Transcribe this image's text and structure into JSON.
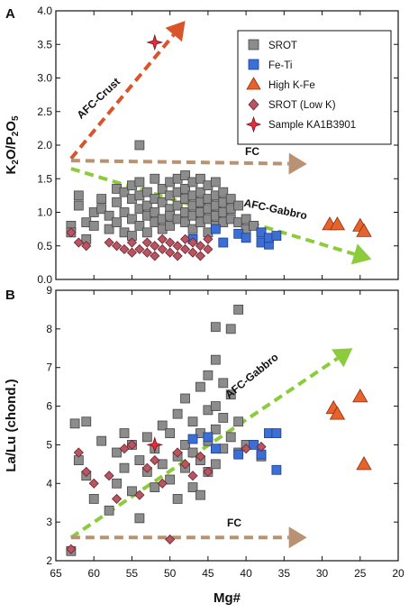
{
  "colors": {
    "srot": "#8c8c8c",
    "fe_ti": "#3b6fd6",
    "high_k_fe": "#e8622c",
    "srot_low_k": "#b95560",
    "sample": "#e0303c",
    "afc_crust": "#d9542a",
    "fc": "#b89272",
    "afc_gabbro": "#8ccc3c"
  },
  "chart_data": [
    {
      "type": "scatter",
      "panel": "A",
      "xlabel": "",
      "ylabel": "K2O/P2O5",
      "xlim": [
        65,
        20
      ],
      "ylim": [
        0,
        4
      ],
      "xticks": [
        65,
        60,
        55,
        50,
        45,
        40,
        35,
        30,
        25,
        20
      ],
      "yticks": [
        "0.0",
        "0.5",
        "1.0",
        "1.5",
        "2.0",
        "2.5",
        "3.0",
        "3.5",
        "4.0"
      ],
      "legend": {
        "placement": "top-right",
        "entries": [
          "SROT",
          "Fe-Ti",
          "High K-Fe",
          "SROT (Low K)",
          "Sample KA1B3901"
        ]
      },
      "trends": [
        {
          "label": "AFC-Crust",
          "from": [
            63,
            1.8
          ],
          "to": [
            48,
            3.85
          ],
          "color_key": "afc_crust"
        },
        {
          "label": "FC",
          "from": [
            63,
            1.77
          ],
          "to": [
            32,
            1.72
          ],
          "color_key": "fc"
        },
        {
          "label": "AFC-Gabbro",
          "from": [
            63,
            1.65
          ],
          "to": [
            23.5,
            0.3
          ],
          "color_key": "afc_gabbro"
        }
      ],
      "series": [
        {
          "name": "SROT",
          "marker": "square",
          "color_key": "srot",
          "points": [
            [
              63,
              0.8
            ],
            [
              63,
              0.7
            ],
            [
              62,
              1.25
            ],
            [
              62,
              1.1
            ],
            [
              61,
              0.85
            ],
            [
              61,
              0.6
            ],
            [
              60,
              1.0
            ],
            [
              60,
              0.8
            ],
            [
              59,
              1.2
            ],
            [
              59,
              1.05
            ],
            [
              58,
              0.95
            ],
            [
              58,
              0.75
            ],
            [
              57,
              1.35
            ],
            [
              57,
              1.15
            ],
            [
              57,
              0.85
            ],
            [
              56,
              1.3
            ],
            [
              56,
              1.0
            ],
            [
              56,
              0.7
            ],
            [
              55,
              1.4
            ],
            [
              55,
              1.2
            ],
            [
              55,
              0.9
            ],
            [
              55,
              0.65
            ],
            [
              54,
              2.0
            ],
            [
              54,
              1.45
            ],
            [
              54,
              1.25
            ],
            [
              54,
              1.05
            ],
            [
              54,
              0.8
            ],
            [
              53,
              1.3
            ],
            [
              53,
              1.1
            ],
            [
              53,
              0.95
            ],
            [
              53,
              0.7
            ],
            [
              52,
              1.5
            ],
            [
              52,
              1.2
            ],
            [
              52,
              1.0
            ],
            [
              52,
              0.85
            ],
            [
              51,
              1.35
            ],
            [
              51,
              1.15
            ],
            [
              51,
              0.9
            ],
            [
              51,
              0.75
            ],
            [
              50,
              1.45
            ],
            [
              50,
              1.25
            ],
            [
              50,
              1.05
            ],
            [
              50,
              0.95
            ],
            [
              50,
              0.8
            ],
            [
              49,
              1.5
            ],
            [
              49,
              1.3
            ],
            [
              49,
              1.1
            ],
            [
              49,
              0.9
            ],
            [
              48,
              1.55
            ],
            [
              48,
              1.35
            ],
            [
              48,
              1.2
            ],
            [
              48,
              1.0
            ],
            [
              48,
              0.85
            ],
            [
              47,
              1.45
            ],
            [
              47,
              1.25
            ],
            [
              47,
              1.1
            ],
            [
              47,
              0.95
            ],
            [
              47,
              0.75
            ],
            [
              46,
              1.5
            ],
            [
              46,
              1.3
            ],
            [
              46,
              1.15
            ],
            [
              46,
              1.0
            ],
            [
              46,
              0.85
            ],
            [
              45,
              1.4
            ],
            [
              45,
              1.2
            ],
            [
              45,
              1.05
            ],
            [
              45,
              0.9
            ],
            [
              45,
              0.7
            ],
            [
              44,
              1.45
            ],
            [
              44,
              1.25
            ],
            [
              44,
              1.1
            ],
            [
              44,
              0.95
            ],
            [
              44,
              0.8
            ],
            [
              43,
              1.3
            ],
            [
              43,
              1.15
            ],
            [
              43,
              1.0
            ],
            [
              43,
              0.85
            ],
            [
              42,
              1.2
            ],
            [
              42,
              1.05
            ],
            [
              42,
              0.9
            ],
            [
              41,
              1.1
            ],
            [
              41,
              0.85
            ],
            [
              40,
              0.9
            ],
            [
              40,
              0.75
            ],
            [
              39,
              0.8
            ],
            [
              38,
              0.7
            ]
          ]
        },
        {
          "name": "Fe-Ti",
          "marker": "square",
          "color_key": "fe_ti",
          "points": [
            [
              47,
              0.6
            ],
            [
              44,
              0.75
            ],
            [
              43,
              0.55
            ],
            [
              41,
              0.68
            ],
            [
              40,
              0.62
            ],
            [
              38,
              0.55
            ],
            [
              38,
              0.7
            ],
            [
              37,
              0.52
            ],
            [
              37,
              0.62
            ],
            [
              36,
              0.65
            ]
          ]
        },
        {
          "name": "High K-Fe",
          "marker": "triangle",
          "color_key": "high_k_fe",
          "points": [
            [
              29,
              0.82
            ],
            [
              28,
              0.82
            ],
            [
              25,
              0.8
            ],
            [
              24.5,
              0.72
            ]
          ]
        },
        {
          "name": "SROT (Low K)",
          "marker": "diamond",
          "color_key": "srot_low_k",
          "points": [
            [
              63,
              0.7
            ],
            [
              62,
              0.55
            ],
            [
              61,
              0.5
            ],
            [
              58,
              0.55
            ],
            [
              57,
              0.5
            ],
            [
              56,
              0.45
            ],
            [
              55,
              0.55
            ],
            [
              55,
              0.4
            ],
            [
              54,
              0.45
            ],
            [
              53,
              0.55
            ],
            [
              53,
              0.4
            ],
            [
              52,
              0.5
            ],
            [
              52,
              0.35
            ],
            [
              51,
              0.45
            ],
            [
              51,
              0.6
            ],
            [
              50,
              0.4
            ],
            [
              50,
              0.55
            ],
            [
              49,
              0.5
            ],
            [
              49,
              0.35
            ],
            [
              48,
              0.45
            ],
            [
              48,
              0.6
            ],
            [
              47,
              0.4
            ],
            [
              47,
              0.55
            ],
            [
              46,
              0.5
            ],
            [
              46,
              0.35
            ],
            [
              45,
              0.45
            ],
            [
              45,
              0.6
            ]
          ]
        },
        {
          "name": "Sample KA1B3901",
          "marker": "star",
          "color_key": "sample",
          "points": [
            [
              52,
              3.53
            ]
          ]
        }
      ]
    },
    {
      "type": "scatter",
      "panel": "B",
      "xlabel": "Mg#",
      "ylabel": "La/Lu (chond.)",
      "xlim": [
        65,
        20
      ],
      "ylim": [
        2,
        9
      ],
      "xticks": [
        65,
        60,
        55,
        50,
        45,
        40,
        35,
        30,
        25,
        20
      ],
      "yticks": [
        "2",
        "3",
        "4",
        "5",
        "6",
        "7",
        "8",
        "9"
      ],
      "trends": [
        {
          "label": "AFC-Gabbro",
          "from": [
            63,
            2.6
          ],
          "to": [
            26,
            7.5
          ],
          "color_key": "afc_gabbro"
        },
        {
          "label": "FC",
          "from": [
            63,
            2.6
          ],
          "to": [
            32,
            2.6
          ],
          "color_key": "fc"
        }
      ],
      "series": [
        {
          "name": "SROT",
          "marker": "square",
          "color_key": "srot",
          "points": [
            [
              63,
              2.25
            ],
            [
              62.5,
              5.55
            ],
            [
              61,
              5.6
            ],
            [
              62,
              4.6
            ],
            [
              61,
              4.2
            ],
            [
              60,
              3.6
            ],
            [
              59,
              5.1
            ],
            [
              58,
              3.3
            ],
            [
              57,
              4.8
            ],
            [
              57,
              4.0
            ],
            [
              56,
              5.3
            ],
            [
              56,
              4.4
            ],
            [
              55,
              3.8
            ],
            [
              55,
              5.0
            ],
            [
              54,
              4.6
            ],
            [
              54,
              3.1
            ],
            [
              53,
              5.2
            ],
            [
              53,
              4.3
            ],
            [
              52,
              4.9
            ],
            [
              52,
              3.9
            ],
            [
              51,
              5.5
            ],
            [
              51,
              4.5
            ],
            [
              50,
              4.1
            ],
            [
              50,
              5.3
            ],
            [
              49,
              5.8
            ],
            [
              49,
              4.7
            ],
            [
              49,
              3.6
            ],
            [
              48,
              6.2
            ],
            [
              48,
              5.0
            ],
            [
              48,
              4.4
            ],
            [
              47,
              5.6
            ],
            [
              47,
              4.8
            ],
            [
              47,
              3.9
            ],
            [
              46,
              6.5
            ],
            [
              46,
              5.3
            ],
            [
              46,
              4.6
            ],
            [
              46,
              3.7
            ],
            [
              45,
              6.8
            ],
            [
              45,
              5.9
            ],
            [
              45,
              5.1
            ],
            [
              45,
              4.3
            ],
            [
              44,
              7.2
            ],
            [
              44,
              6.0
            ],
            [
              44,
              5.4
            ],
            [
              44,
              4.5
            ],
            [
              43,
              6.6
            ],
            [
              43,
              5.7
            ],
            [
              43,
              4.9
            ],
            [
              42,
              6.3
            ],
            [
              42,
              5.2
            ],
            [
              41,
              5.6
            ],
            [
              41,
              4.8
            ],
            [
              40,
              5.0
            ],
            [
              44,
              8.05
            ],
            [
              42,
              8.0
            ],
            [
              41,
              8.5
            ],
            [
              38,
              4.7
            ]
          ]
        },
        {
          "name": "Fe-Ti",
          "marker": "square",
          "color_key": "fe_ti",
          "points": [
            [
              47,
              5.15
            ],
            [
              45,
              5.2
            ],
            [
              44,
              4.9
            ],
            [
              41,
              4.75
            ],
            [
              39,
              5.0
            ],
            [
              38,
              4.75
            ],
            [
              37,
              5.3
            ],
            [
              36,
              5.3
            ],
            [
              36,
              4.35
            ]
          ]
        },
        {
          "name": "High K-Fe",
          "marker": "triangle",
          "color_key": "high_k_fe",
          "points": [
            [
              28.5,
              5.95
            ],
            [
              28,
              5.8
            ],
            [
              25,
              6.25
            ],
            [
              24.5,
              4.5
            ]
          ]
        },
        {
          "name": "SROT (Low K)",
          "marker": "diamond",
          "color_key": "srot_low_k",
          "points": [
            [
              63,
              2.3
            ],
            [
              62,
              4.8
            ],
            [
              61,
              4.3
            ],
            [
              60,
              4.0
            ],
            [
              58,
              4.2
            ],
            [
              57,
              3.6
            ],
            [
              56,
              4.9
            ],
            [
              55,
              5.0
            ],
            [
              54,
              3.7
            ],
            [
              53,
              4.4
            ],
            [
              52,
              4.6
            ],
            [
              51,
              4.0
            ],
            [
              50,
              2.55
            ],
            [
              49,
              4.8
            ],
            [
              48,
              4.5
            ],
            [
              47,
              4.2
            ],
            [
              46,
              4.7
            ],
            [
              45,
              4.3
            ],
            [
              40,
              4.9
            ],
            [
              38,
              4.95
            ]
          ]
        },
        {
          "name": "Sample KA1B3901",
          "marker": "star",
          "color_key": "sample",
          "points": [
            [
              52,
              5.0
            ]
          ]
        }
      ]
    }
  ]
}
